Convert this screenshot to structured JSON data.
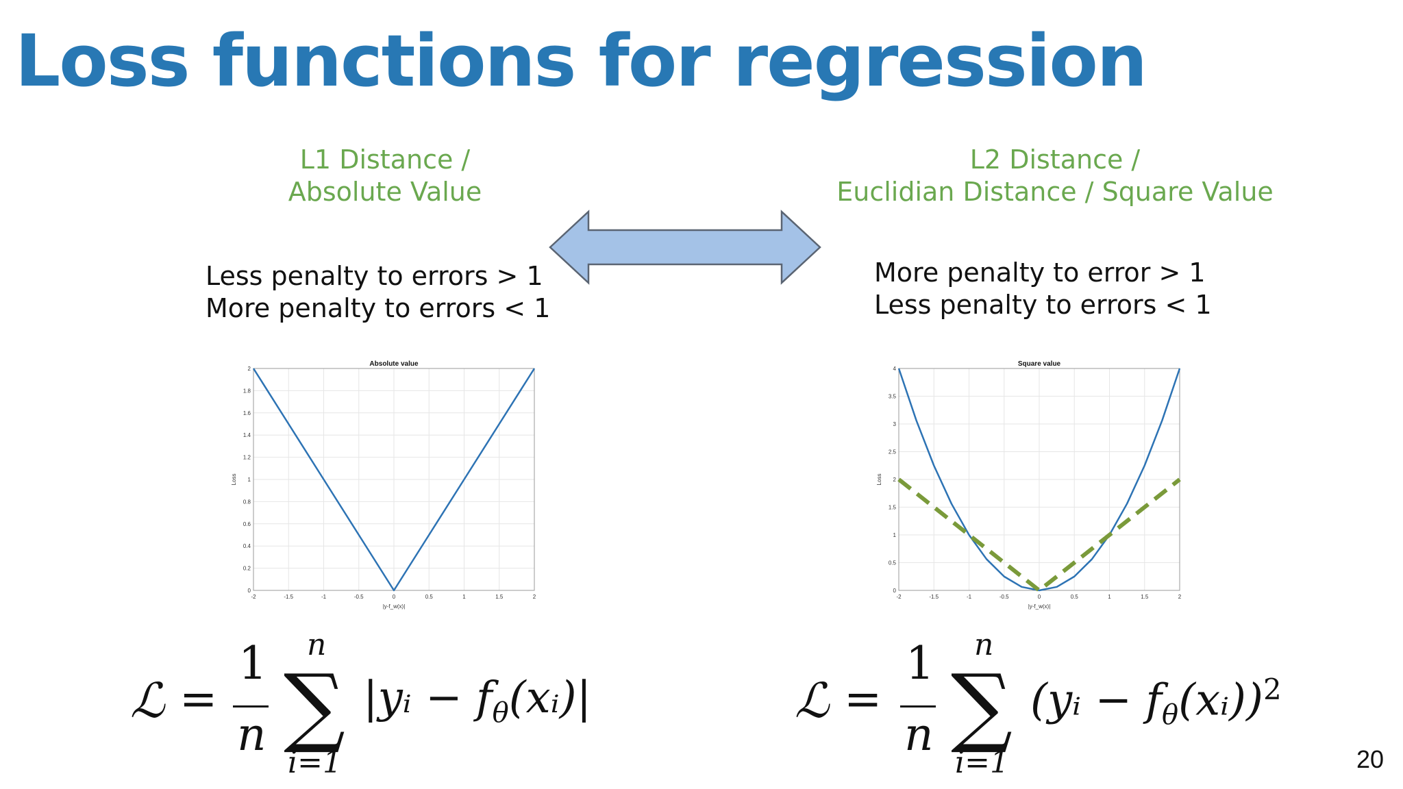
{
  "slide": {
    "title": "Loss functions for regression",
    "page_number": "20"
  },
  "left": {
    "heading_line1": "L1 Distance /",
    "heading_line2": "Absolute Value",
    "penalty_line1": "Less penalty to errors > 1",
    "penalty_line2": "More penalty to errors < 1",
    "formula": {
      "lhs": "ℒ",
      "eq": "=",
      "numerator": "1",
      "denominator": "n",
      "sum_upper": "n",
      "sum_lower": "i=1",
      "sum": "∑",
      "body": "|yᵢ − f",
      "body_sub": "θ",
      "body_tail": "(xᵢ)|"
    }
  },
  "right": {
    "heading_line1": "L2 Distance /",
    "heading_line2": "Euclidian Distance / Square Value",
    "penalty_line1": "More penalty to error > 1",
    "penalty_line2": "Less penalty to errors < 1",
    "formula": {
      "lhs": "ℒ",
      "eq": "=",
      "numerator": "1",
      "denominator": "n",
      "sum_upper": "n",
      "sum_lower": "i=1",
      "sum": "∑",
      "body": "(yᵢ − f",
      "body_sub": "θ",
      "body_tail": "(xᵢ))",
      "exponent": "2"
    }
  },
  "colors": {
    "title": "#2878b4",
    "heading": "#6aa84f",
    "arrow_fill": "#a4c2e7",
    "arrow_stroke": "#5a6472",
    "series_blue": "#2d73b4",
    "series_green": "#7a9a3a"
  },
  "icons": {
    "arrow": "double-headed-arrow-icon"
  },
  "chart_data": [
    {
      "type": "line",
      "title": "Absolute value",
      "xlabel": "|y-f_w(x)|",
      "ylabel": "Loss",
      "xlim": [
        -2,
        2
      ],
      "ylim": [
        0,
        2
      ],
      "xticks": [
        "-2",
        "-1.5",
        "-1",
        "-0.5",
        "0",
        "0.5",
        "1",
        "1.5",
        "2"
      ],
      "yticks": [
        "0",
        "0.2",
        "0.4",
        "0.6",
        "0.8",
        "1",
        "1.2",
        "1.4",
        "1.6",
        "1.8",
        "2"
      ],
      "grid": true,
      "series": [
        {
          "x": [
            -2,
            -1.5,
            -1,
            -0.5,
            0,
            0.5,
            1,
            1.5,
            2
          ],
          "y": [
            2,
            1.5,
            1,
            0.5,
            0,
            0.5,
            1,
            1.5,
            2
          ],
          "style": "solid",
          "color": "#2d73b4"
        }
      ]
    },
    {
      "type": "line",
      "title": "Square value",
      "xlabel": "|y-f_w(x)|",
      "ylabel": "Loss",
      "xlim": [
        -2,
        2
      ],
      "ylim": [
        0,
        4
      ],
      "xticks": [
        "-2",
        "-1.5",
        "-1",
        "-0.5",
        "0",
        "0.5",
        "1",
        "1.5",
        "2"
      ],
      "yticks": [
        "0",
        "0.5",
        "1",
        "1.5",
        "2",
        "2.5",
        "3",
        "3.5",
        "4"
      ],
      "grid": true,
      "series": [
        {
          "x": [
            -2,
            -1.75,
            -1.5,
            -1.25,
            -1,
            -0.75,
            -0.5,
            -0.25,
            0,
            0.25,
            0.5,
            0.75,
            1,
            1.25,
            1.5,
            1.75,
            2
          ],
          "y": [
            4,
            3.0625,
            2.25,
            1.5625,
            1,
            0.5625,
            0.25,
            0.0625,
            0,
            0.0625,
            0.25,
            0.5625,
            1,
            1.5625,
            2.25,
            3.0625,
            4
          ],
          "style": "solid",
          "color": "#2d73b4"
        },
        {
          "x": [
            -2,
            -1,
            0,
            1,
            2
          ],
          "y": [
            2,
            1,
            0,
            1,
            2
          ],
          "style": "dashed",
          "color": "#7a9a3a"
        }
      ]
    }
  ]
}
